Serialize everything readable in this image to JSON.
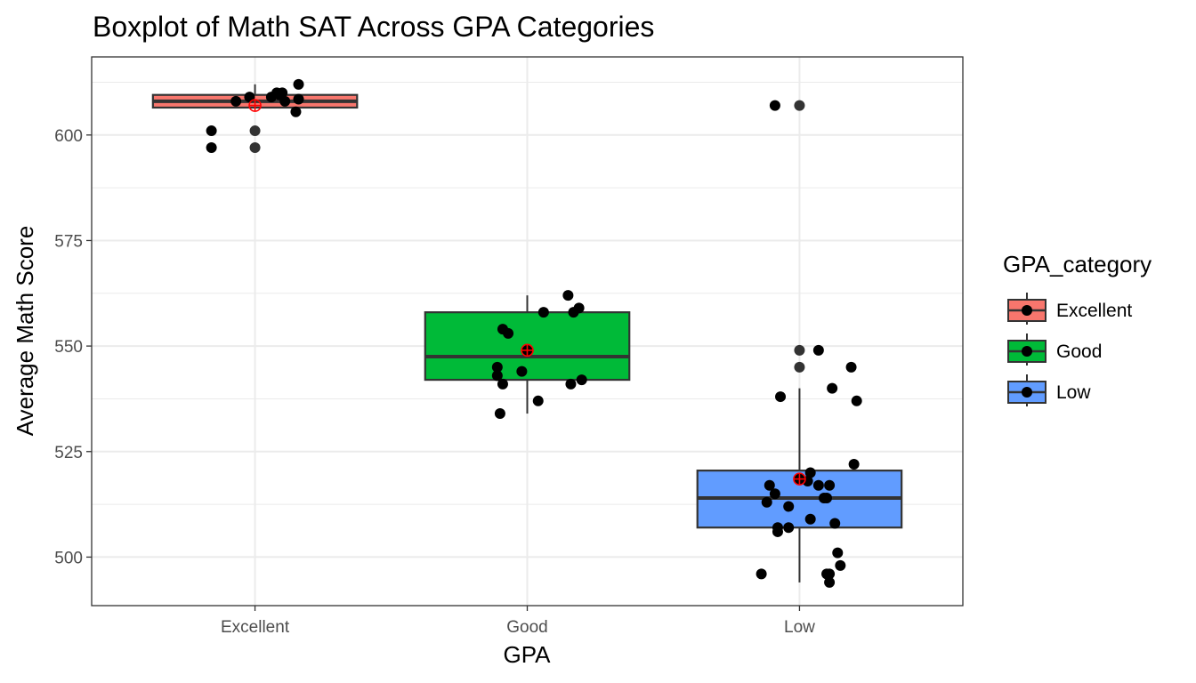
{
  "chart_data": {
    "type": "boxplot",
    "title": "Boxplot of Math SAT Across GPA Categories",
    "xlabel": "GPA",
    "ylabel": "Average Math Score",
    "ylim": [
      488.5,
      618.5
    ],
    "yticks": [
      500,
      525,
      550,
      575,
      600
    ],
    "grid": true,
    "categories": [
      "Excellent",
      "Good",
      "Low"
    ],
    "legend": {
      "title": "GPA_category",
      "position": "right",
      "entries": [
        {
          "label": "Excellent",
          "color": "#F8766D"
        },
        {
          "label": "Good",
          "color": "#00BA38"
        },
        {
          "label": "Low",
          "color": "#619CFF"
        }
      ]
    },
    "boxes": [
      {
        "category": "Excellent",
        "color": "#F8766D",
        "whisker_low": 606.5,
        "q1": 606.5,
        "median": 608.0,
        "q3": 609.5,
        "whisker_high": 612.0,
        "mean": 607.0,
        "outliers": [
          601.0,
          597.0
        ],
        "points": [
          {
            "x": 0.84,
            "y": 601.0
          },
          {
            "x": 0.84,
            "y": 597.0
          },
          {
            "x": 0.93,
            "y": 608.0
          },
          {
            "x": 0.98,
            "y": 609.0
          },
          {
            "x": 1.06,
            "y": 609.0
          },
          {
            "x": 1.08,
            "y": 610.0
          },
          {
            "x": 1.09,
            "y": 609.5
          },
          {
            "x": 1.1,
            "y": 610.0
          },
          {
            "x": 1.11,
            "y": 608.0
          },
          {
            "x": 1.15,
            "y": 605.5
          },
          {
            "x": 1.16,
            "y": 608.5
          },
          {
            "x": 1.16,
            "y": 612.0
          }
        ]
      },
      {
        "category": "Good",
        "color": "#00BA38",
        "whisker_low": 534.0,
        "q1": 542.0,
        "median": 547.5,
        "q3": 558.0,
        "whisker_high": 562.0,
        "mean": 549.0,
        "outliers": [],
        "points": [
          {
            "x": 1.9,
            "y": 534.0
          },
          {
            "x": 1.91,
            "y": 541.0
          },
          {
            "x": 1.89,
            "y": 545.0
          },
          {
            "x": 1.89,
            "y": 543.0
          },
          {
            "x": 1.91,
            "y": 554.0
          },
          {
            "x": 1.93,
            "y": 553.0
          },
          {
            "x": 1.98,
            "y": 544.0
          },
          {
            "x": 2.0,
            "y": 549.0
          },
          {
            "x": 2.04,
            "y": 537.0
          },
          {
            "x": 2.06,
            "y": 558.0
          },
          {
            "x": 2.15,
            "y": 562.0
          },
          {
            "x": 2.16,
            "y": 541.0
          },
          {
            "x": 2.17,
            "y": 558.0
          },
          {
            "x": 2.19,
            "y": 559.0
          },
          {
            "x": 2.2,
            "y": 542.0
          }
        ]
      },
      {
        "category": "Low",
        "color": "#619CFF",
        "whisker_low": 494.0,
        "q1": 507.0,
        "median": 514.0,
        "q3": 520.5,
        "whisker_high": 540.0,
        "mean": 518.5,
        "outliers": [
          607.0,
          549.0,
          545.0
        ],
        "points": [
          {
            "x": 2.91,
            "y": 607.0
          },
          {
            "x": 2.86,
            "y": 496.0
          },
          {
            "x": 2.88,
            "y": 513.0
          },
          {
            "x": 2.89,
            "y": 517.0
          },
          {
            "x": 2.91,
            "y": 515.0
          },
          {
            "x": 2.92,
            "y": 506.0
          },
          {
            "x": 2.92,
            "y": 507.0
          },
          {
            "x": 2.93,
            "y": 538.0
          },
          {
            "x": 2.96,
            "y": 507.0
          },
          {
            "x": 2.96,
            "y": 512.0
          },
          {
            "x": 3.0,
            "y": 518.5
          },
          {
            "x": 3.03,
            "y": 518.0
          },
          {
            "x": 3.04,
            "y": 509.0
          },
          {
            "x": 3.04,
            "y": 520.0
          },
          {
            "x": 3.07,
            "y": 549.0
          },
          {
            "x": 3.07,
            "y": 517.0
          },
          {
            "x": 3.09,
            "y": 514.0
          },
          {
            "x": 3.1,
            "y": 514.0
          },
          {
            "x": 3.1,
            "y": 496.0
          },
          {
            "x": 3.11,
            "y": 496.0
          },
          {
            "x": 3.11,
            "y": 517.0
          },
          {
            "x": 3.11,
            "y": 494.0
          },
          {
            "x": 3.12,
            "y": 540.0
          },
          {
            "x": 3.13,
            "y": 508.0
          },
          {
            "x": 3.14,
            "y": 501.0
          },
          {
            "x": 3.15,
            "y": 498.0
          },
          {
            "x": 3.19,
            "y": 545.0
          },
          {
            "x": 3.2,
            "y": 522.0
          },
          {
            "x": 3.21,
            "y": 537.0
          }
        ]
      }
    ]
  }
}
